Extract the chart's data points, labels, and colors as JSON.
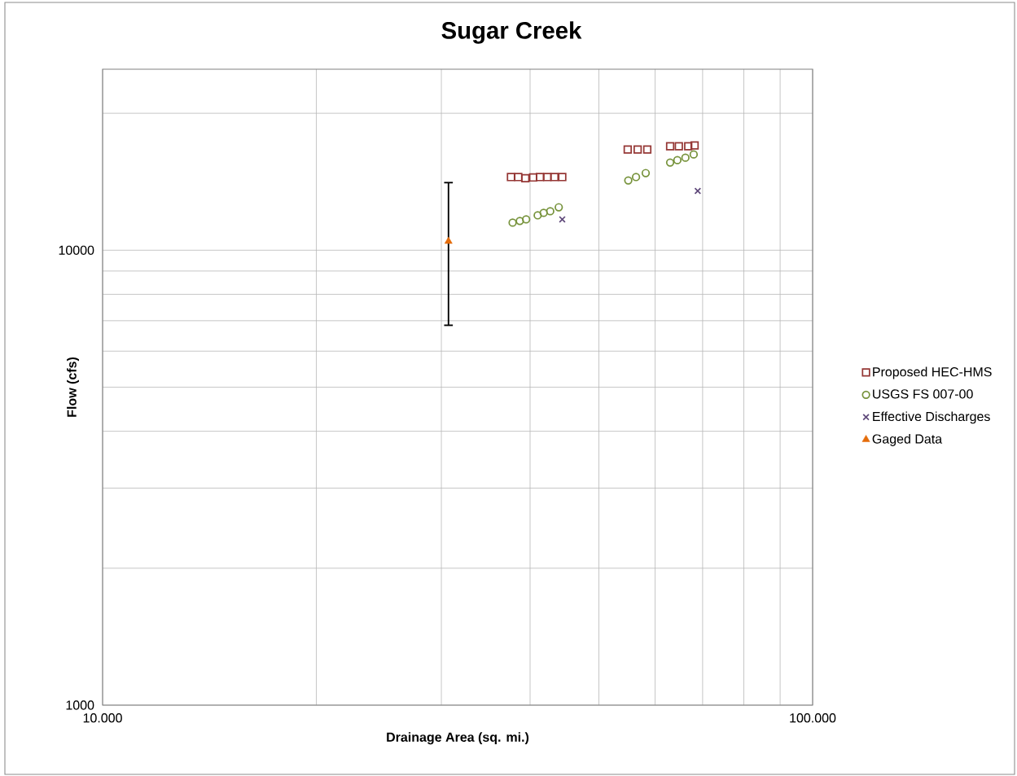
{
  "chart_data": {
    "type": "scatter",
    "title": "Sugar Creek",
    "xlabel": "Drainage Area (sq. mi.)",
    "ylabel": "Flow (cfs)",
    "log": "xy",
    "xlim": [
      10,
      100
    ],
    "ylim": [
      1000,
      25000
    ],
    "xticks": [
      {
        "value": 10,
        "label": "10.000"
      },
      {
        "value": 100,
        "label": "100.000"
      }
    ],
    "yticks": [
      1000,
      10000
    ],
    "grid": true,
    "legend": "right",
    "series": [
      {
        "name": "Proposed HEC-HMS",
        "color": "#953735",
        "marker": "square",
        "x": [
          37.6,
          38.5,
          39.4,
          40.4,
          41.3,
          42.3,
          43.3,
          44.4,
          54.9,
          56.7,
          58.5,
          63.0,
          64.8,
          66.8,
          68.2
        ],
        "values": [
          14480,
          14480,
          14400,
          14450,
          14480,
          14480,
          14480,
          14480,
          16650,
          16650,
          16650,
          16930,
          16930,
          16930,
          17000
        ]
      },
      {
        "name": "USGS FS 007-00",
        "color": "#77933c",
        "marker": "circle",
        "x": [
          37.8,
          38.7,
          39.5,
          41.0,
          41.8,
          42.7,
          43.9,
          55.0,
          56.4,
          58.2,
          63.0,
          64.5,
          66.2,
          68.0
        ],
        "values": [
          11500,
          11600,
          11690,
          11930,
          12080,
          12180,
          12430,
          14240,
          14480,
          14780,
          15590,
          15780,
          15970,
          16240
        ]
      },
      {
        "name": "Effective Discharges",
        "color": "#604a7b",
        "marker": "cross",
        "x": [
          44.4,
          68.9
        ],
        "values": [
          11690,
          13500
        ]
      },
      {
        "name": "Gaged Data",
        "color": "#e46c0a",
        "marker": "triangle",
        "x": [
          30.7
        ],
        "values": [
          10460
        ],
        "errors": [
          3620
        ]
      }
    ]
  }
}
